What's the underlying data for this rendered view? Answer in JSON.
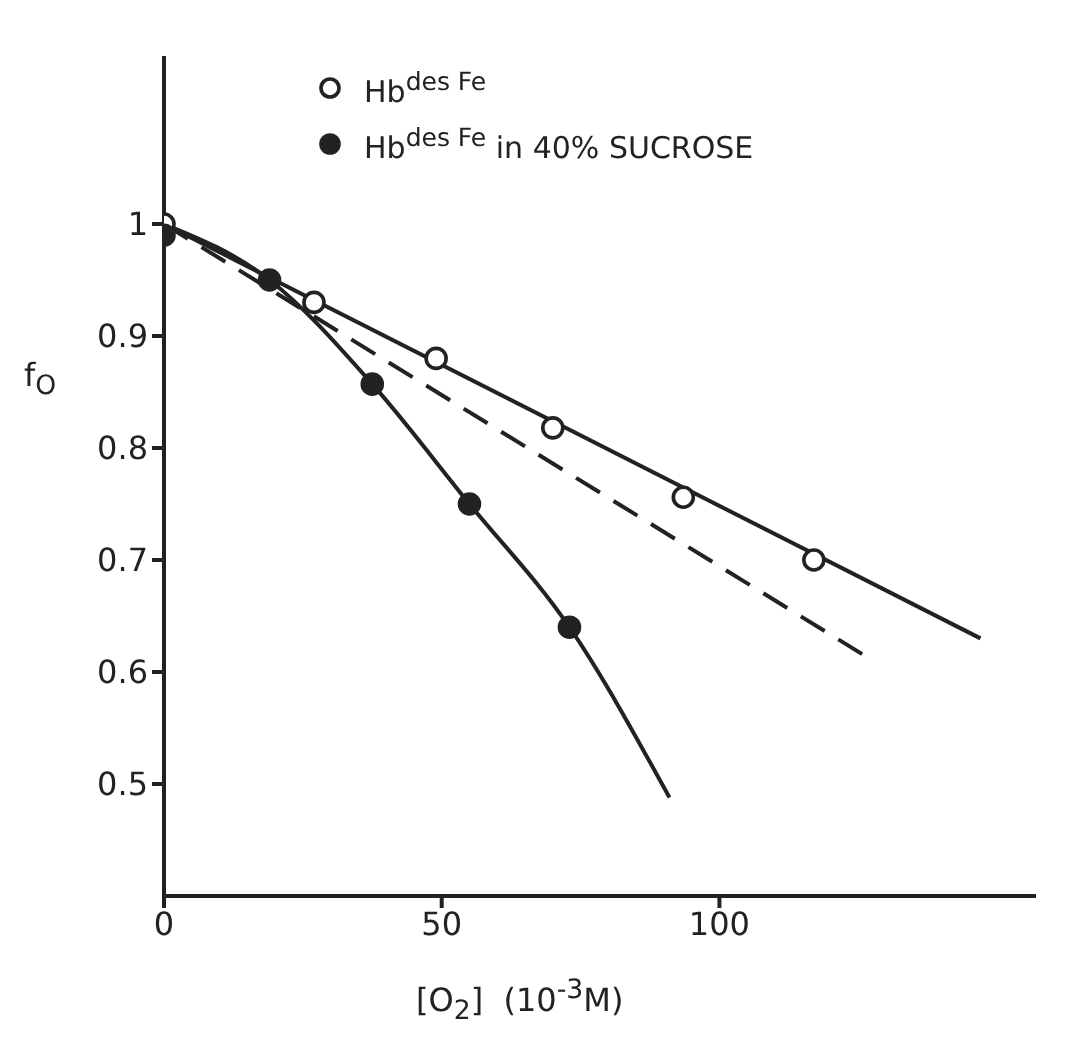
{
  "chart_data": {
    "type": "scatter",
    "xlabel": "[O$_{2}$]  (10$^{-3}$M)",
    "ylabel": "f$_{O}$",
    "xlim": [
      0,
      157
    ],
    "ylim": [
      0.4,
      1.15
    ],
    "xticks": [
      0,
      50,
      100
    ],
    "yticks": [
      0.5,
      0.6,
      0.7,
      0.8,
      0.9,
      {
        "value": 1,
        "label": "1"
      }
    ],
    "legend": "top",
    "grid": false,
    "marker": "circle",
    "series": [
      {
        "name": "Hb$^{des Fe}$",
        "color": "#ffffff",
        "x": [
          0,
          27,
          49,
          70,
          93.5,
          117
        ],
        "values": [
          1,
          0.93,
          0.88,
          0.818,
          0.756,
          0.7
        ]
      },
      {
        "name": "Hb$^{des Fe}$ in 40% SUCROSE",
        "color": "#222222",
        "x": [
          0,
          19,
          37.5,
          55,
          73
        ],
        "values": [
          0.99,
          0.95,
          0.857,
          0.75,
          0.64
        ]
      },
      {
        "type": "line",
        "color": "#222222",
        "line_style": "solid",
        "marker": "none",
        "x": [
          0,
          147
        ],
        "values": [
          1,
          0.63
        ]
      },
      {
        "type": "line",
        "color": "#222222",
        "line_style": "dashed",
        "marker": "none",
        "x": [
          0,
          127
        ],
        "values": [
          1,
          0.612
        ]
      },
      {
        "type": "line",
        "color": "#222222",
        "line_style": "solid",
        "marker": "none",
        "x": [
          0,
          19,
          37.5,
          55,
          73,
          91
        ],
        "values": [
          1,
          0.95,
          0.857,
          0.75,
          0.64,
          0.488
        ]
      }
    ]
  }
}
